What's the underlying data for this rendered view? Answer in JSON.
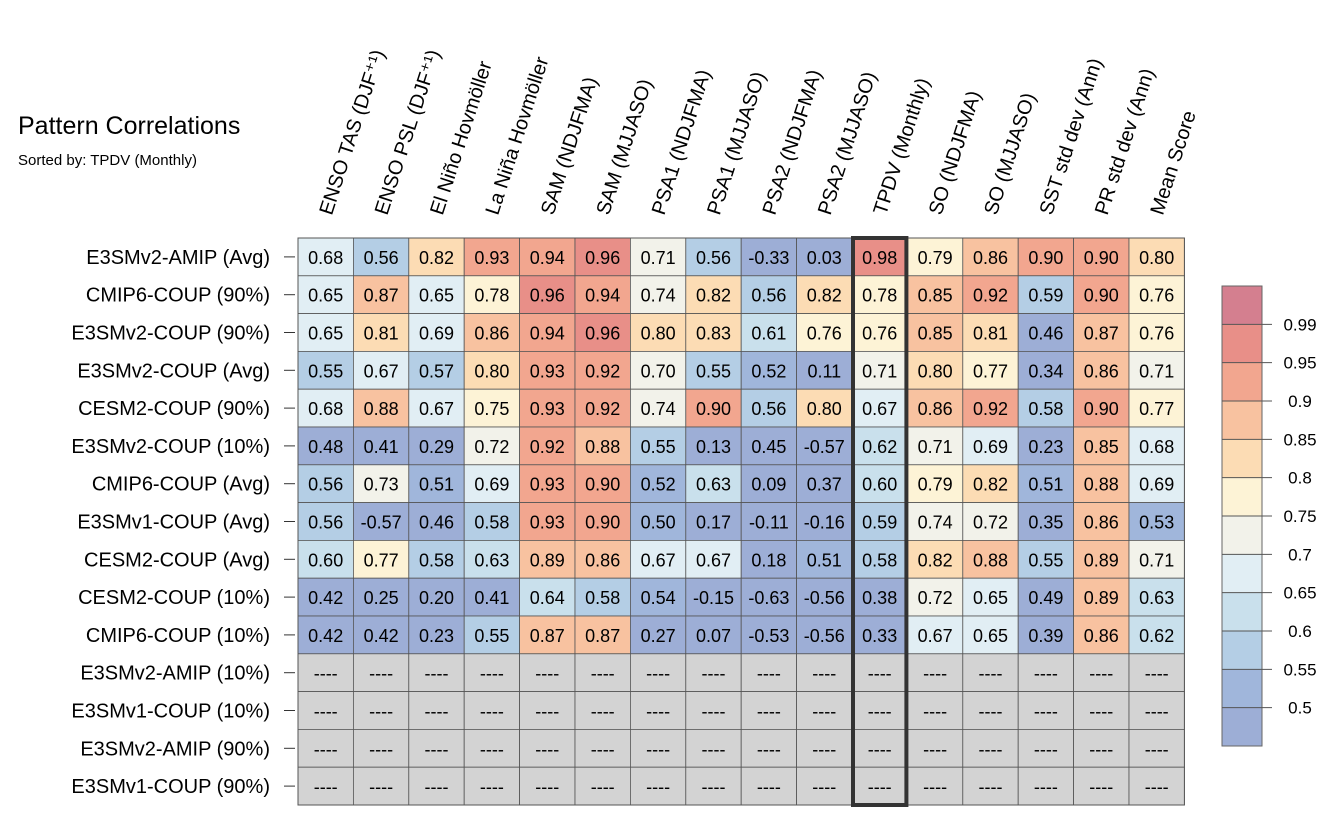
{
  "chart_data": {
    "type": "heatmap",
    "title": "Pattern Correlations",
    "subtitle": "Sorted by: TPDV (Monthly)",
    "columns": [
      "ENSO TAS (DJF⁺¹)",
      "ENSO PSL (DJF⁺¹)",
      "El Niño Hovmöller",
      "La Niña Hovmöller",
      "SAM (NDJFMA)",
      "SAM (MJJASO)",
      "PSA1 (NDJFMA)",
      "PSA1 (MJJASO)",
      "PSA2 (NDJFMA)",
      "PSA2 (MJJASO)",
      "TPDV (Monthly)",
      "SO (NDJFMA)",
      "SO (MJJASO)",
      "SST std dev (Ann)",
      "PR std dev (Ann)",
      "Mean Score"
    ],
    "highlight_column": "TPDV (Monthly)",
    "rows": [
      "E3SMv2-AMIP (Avg)",
      "CMIP6-COUP (90%)",
      "E3SMv2-COUP (90%)",
      "E3SMv2-COUP (Avg)",
      "CESM2-COUP (90%)",
      "E3SMv2-COUP (10%)",
      "CMIP6-COUP (Avg)",
      "E3SMv1-COUP (Avg)",
      "CESM2-COUP (Avg)",
      "CESM2-COUP (10%)",
      "CMIP6-COUP (10%)",
      "E3SMv2-AMIP (10%)",
      "E3SMv1-COUP (10%)",
      "E3SMv2-AMIP (90%)",
      "E3SMv1-COUP (90%)"
    ],
    "values": [
      [
        "0.68",
        "0.56",
        "0.82",
        "0.93",
        "0.94",
        "0.96",
        "0.71",
        "0.56",
        "-0.33",
        "0.03",
        "0.98",
        "0.79",
        "0.86",
        "0.90",
        "0.90",
        "0.80"
      ],
      [
        "0.65",
        "0.87",
        "0.65",
        "0.78",
        "0.96",
        "0.94",
        "0.74",
        "0.82",
        "0.56",
        "0.82",
        "0.78",
        "0.85",
        "0.92",
        "0.59",
        "0.90",
        "0.76"
      ],
      [
        "0.65",
        "0.81",
        "0.69",
        "0.86",
        "0.94",
        "0.96",
        "0.80",
        "0.83",
        "0.61",
        "0.76",
        "0.76",
        "0.85",
        "0.81",
        "0.46",
        "0.87",
        "0.76"
      ],
      [
        "0.55",
        "0.67",
        "0.57",
        "0.80",
        "0.93",
        "0.92",
        "0.70",
        "0.55",
        "0.52",
        "0.11",
        "0.71",
        "0.80",
        "0.77",
        "0.34",
        "0.86",
        "0.71"
      ],
      [
        "0.68",
        "0.88",
        "0.67",
        "0.75",
        "0.93",
        "0.92",
        "0.74",
        "0.90",
        "0.56",
        "0.80",
        "0.67",
        "0.86",
        "0.92",
        "0.58",
        "0.90",
        "0.77"
      ],
      [
        "0.48",
        "0.41",
        "0.29",
        "0.72",
        "0.92",
        "0.88",
        "0.55",
        "0.13",
        "0.45",
        "-0.57",
        "0.62",
        "0.71",
        "0.69",
        "0.23",
        "0.85",
        "0.68"
      ],
      [
        "0.56",
        "0.73",
        "0.51",
        "0.69",
        "0.93",
        "0.90",
        "0.52",
        "0.63",
        "0.09",
        "0.37",
        "0.60",
        "0.79",
        "0.82",
        "0.51",
        "0.88",
        "0.69"
      ],
      [
        "0.56",
        "-0.57",
        "0.46",
        "0.58",
        "0.93",
        "0.90",
        "0.50",
        "0.17",
        "-0.11",
        "-0.16",
        "0.59",
        "0.74",
        "0.72",
        "0.35",
        "0.86",
        "0.53"
      ],
      [
        "0.60",
        "0.77",
        "0.58",
        "0.63",
        "0.89",
        "0.86",
        "0.67",
        "0.67",
        "0.18",
        "0.51",
        "0.58",
        "0.82",
        "0.88",
        "0.55",
        "0.89",
        "0.71"
      ],
      [
        "0.42",
        "0.25",
        "0.20",
        "0.41",
        "0.64",
        "0.58",
        "0.54",
        "-0.15",
        "-0.63",
        "-0.56",
        "0.38",
        "0.72",
        "0.65",
        "0.49",
        "0.89",
        "0.63"
      ],
      [
        "0.42",
        "0.42",
        "0.23",
        "0.55",
        "0.87",
        "0.87",
        "0.27",
        "0.07",
        "-0.53",
        "-0.56",
        "0.33",
        "0.67",
        "0.65",
        "0.39",
        "0.86",
        "0.62"
      ],
      [
        "----",
        "----",
        "----",
        "----",
        "----",
        "----",
        "----",
        "----",
        "----",
        "----",
        "----",
        "----",
        "----",
        "----",
        "----",
        "----"
      ],
      [
        "----",
        "----",
        "----",
        "----",
        "----",
        "----",
        "----",
        "----",
        "----",
        "----",
        "----",
        "----",
        "----",
        "----",
        "----",
        "----"
      ],
      [
        "----",
        "----",
        "----",
        "----",
        "----",
        "----",
        "----",
        "----",
        "----",
        "----",
        "----",
        "----",
        "----",
        "----",
        "----",
        "----"
      ],
      [
        "----",
        "----",
        "----",
        "----",
        "----",
        "----",
        "----",
        "----",
        "----",
        "----",
        "----",
        "----",
        "----",
        "----",
        "----",
        "----"
      ]
    ],
    "colorbar": {
      "labels": [
        "0.99",
        "0.95",
        "0.9",
        "0.85",
        "0.8",
        "0.75",
        "0.7",
        "0.65",
        "0.6",
        "0.55",
        "0.5"
      ],
      "bins": [
        {
          "min": 0.99,
          "color": "#d47f8f"
        },
        {
          "min": 0.95,
          "color": "#e88f88"
        },
        {
          "min": 0.9,
          "color": "#f2a68f"
        },
        {
          "min": 0.85,
          "color": "#f8c2a0"
        },
        {
          "min": 0.8,
          "color": "#fcdcb4"
        },
        {
          "min": 0.75,
          "color": "#fdf3d6"
        },
        {
          "min": 0.7,
          "color": "#f2f2ea"
        },
        {
          "min": 0.65,
          "color": "#e1eef4"
        },
        {
          "min": 0.6,
          "color": "#c9e0ec"
        },
        {
          "min": 0.55,
          "color": "#b4cee5"
        },
        {
          "min": 0.5,
          "color": "#a0b6db"
        },
        {
          "min": -1.0,
          "color": "#9daed6"
        }
      ],
      "missing_color": "#d3d3d3"
    }
  }
}
